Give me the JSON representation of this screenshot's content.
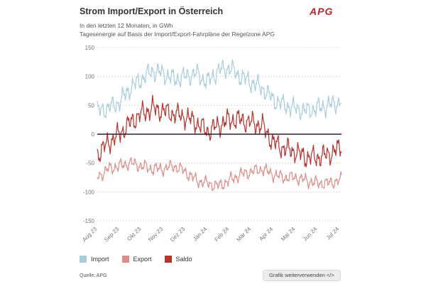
{
  "header": {
    "title": "Strom Import/Export in Österreich",
    "logo": "APG",
    "subtitle_1": "In den letzten 12 Monaten, in GWh",
    "subtitle_2": "Tagesenergie auf Basis der Import/Export-Fahrpläne der Regelzone APG"
  },
  "colors": {
    "import": "#a9cedb",
    "export": "#dd8d8a",
    "saldo": "#b7322d",
    "zero_line": "#2b1d2e",
    "grid": "#d9d9d9"
  },
  "legend": {
    "import": "Import",
    "export": "Export",
    "saldo": "Saldo"
  },
  "footer": {
    "source": "Quelle: APG",
    "reuse_button": "Grafik weiterverwenden </>"
  },
  "chart_data": {
    "type": "line",
    "title": "Strom Import/Export in Österreich",
    "ylabel": "GWh",
    "ylim": [
      -150,
      150
    ],
    "yticks": [
      150,
      100,
      50,
      0,
      -50,
      -100,
      -150
    ],
    "xlim": [
      0,
      11.1
    ],
    "xticks": [
      {
        "label": "Aug 23",
        "pos": 0
      },
      {
        "label": "Sep 23",
        "pos": 1
      },
      {
        "label": "Okt 23",
        "pos": 2
      },
      {
        "label": "Nov 23",
        "pos": 3
      },
      {
        "label": "Dez 23",
        "pos": 4
      },
      {
        "label": "Jan 24",
        "pos": 5
      },
      {
        "label": "Feb 24",
        "pos": 6
      },
      {
        "label": "Mär 24",
        "pos": 7
      },
      {
        "label": "Apr 24",
        "pos": 8
      },
      {
        "label": "Mai 24",
        "pos": 9
      },
      {
        "label": "Jun 24",
        "pos": 10
      },
      {
        "label": "Jul 24",
        "pos": 11
      }
    ],
    "grid": true,
    "series": [
      {
        "name": "Import",
        "color_key": "import",
        "month_values": [
          [
            0,
            40
          ],
          [
            0.5,
            45
          ],
          [
            1,
            55
          ],
          [
            1.5,
            80
          ],
          [
            2,
            95
          ],
          [
            2.5,
            110
          ],
          [
            3,
            105
          ],
          [
            3.5,
            95
          ],
          [
            4,
            100
          ],
          [
            4.5,
            105
          ],
          [
            5,
            90
          ],
          [
            5.5,
            110
          ],
          [
            6,
            115
          ],
          [
            6.5,
            100
          ],
          [
            7,
            90
          ],
          [
            7.5,
            80
          ],
          [
            8,
            60
          ],
          [
            8.5,
            50
          ],
          [
            9,
            45
          ],
          [
            9.5,
            40
          ],
          [
            10,
            45
          ],
          [
            10.5,
            50
          ],
          [
            11,
            55
          ],
          [
            11.1,
            60
          ]
        ]
      },
      {
        "name": "Export",
        "color_key": "export",
        "month_values": [
          [
            0,
            -75
          ],
          [
            0.5,
            -60
          ],
          [
            1,
            -55
          ],
          [
            1.5,
            -50
          ],
          [
            2,
            -55
          ],
          [
            2.5,
            -60
          ],
          [
            3,
            -60
          ],
          [
            3.5,
            -55
          ],
          [
            4,
            -65
          ],
          [
            4.5,
            -80
          ],
          [
            5,
            -85
          ],
          [
            5.5,
            -90
          ],
          [
            6,
            -80
          ],
          [
            6.5,
            -70
          ],
          [
            7,
            -65
          ],
          [
            7.5,
            -60
          ],
          [
            8,
            -70
          ],
          [
            8.5,
            -75
          ],
          [
            9,
            -75
          ],
          [
            9.5,
            -80
          ],
          [
            10,
            -85
          ],
          [
            10.5,
            -85
          ],
          [
            11,
            -80
          ],
          [
            11.1,
            -78
          ]
        ]
      },
      {
        "name": "Saldo",
        "color_key": "saldo",
        "month_values": [
          [
            0,
            -35
          ],
          [
            0.5,
            -15
          ],
          [
            1,
            0
          ],
          [
            1.5,
            20
          ],
          [
            2,
            35
          ],
          [
            2.5,
            45
          ],
          [
            3,
            40
          ],
          [
            3.5,
            35
          ],
          [
            4,
            30
          ],
          [
            4.5,
            20
          ],
          [
            5,
            5
          ],
          [
            5.5,
            15
          ],
          [
            6,
            25
          ],
          [
            6.5,
            25
          ],
          [
            7,
            20
          ],
          [
            7.5,
            15
          ],
          [
            8,
            -15
          ],
          [
            8.5,
            -25
          ],
          [
            9,
            -30
          ],
          [
            9.5,
            -40
          ],
          [
            10,
            -40
          ],
          [
            10.5,
            -35
          ],
          [
            11,
            -25
          ],
          [
            11.1,
            -20
          ]
        ]
      }
    ]
  }
}
